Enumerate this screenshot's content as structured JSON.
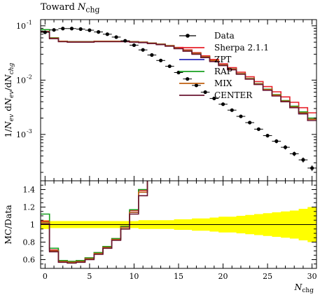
{
  "chart_data": {
    "type": "line",
    "title": "Toward N_chg",
    "title_parts": {
      "prefix": "Toward",
      "var": "N",
      "sub": "chg"
    },
    "xlabel": "N_chg",
    "ylabel_main": "1/N_ev dN_ev/dN_chg",
    "ylabel_ratio": "MC/Data",
    "xlim": [
      -0.5,
      30.5
    ],
    "ylim_main": [
      0.00014,
      0.13
    ],
    "yscale_main": "log",
    "ylim_ratio": [
      0.5,
      1.5
    ],
    "x_ticks": [
      0,
      5,
      10,
      15,
      20,
      25,
      30
    ],
    "x_tick_labels": [
      "0",
      "5",
      "10",
      "15",
      "20",
      "25",
      "30"
    ],
    "y_ticks_main_labels": [
      "10^-1",
      "10^-2",
      "10^-3"
    ],
    "y_ticks_ratio": [
      0.6,
      0.8,
      1.0,
      1.2,
      1.4
    ],
    "y_tick_labels_ratio": [
      "0.6",
      "0.8",
      "1",
      "1.2",
      "1.4"
    ],
    "legend_position": "top-right",
    "bins": [
      0,
      1,
      2,
      3,
      4,
      5,
      6,
      7,
      8,
      9,
      10,
      11,
      12,
      13,
      14,
      15,
      16,
      17,
      18,
      19,
      20,
      21,
      22,
      23,
      24,
      25,
      26,
      27,
      28,
      29,
      30
    ],
    "data": {
      "name": "Data",
      "values": [
        0.076,
        0.084,
        0.089,
        0.089,
        0.087,
        0.083,
        0.077,
        0.07,
        0.062,
        0.053,
        0.044,
        0.036,
        0.029,
        0.023,
        0.018,
        0.0138,
        0.0105,
        0.008,
        0.006,
        0.0046,
        0.0036,
        0.0028,
        0.00215,
        0.00165,
        0.00125,
        0.00095,
        0.00075,
        0.00058,
        0.00044,
        0.00034,
        0.00024
      ],
      "uncertainty_band_rel": [
        0.05,
        0.04,
        0.04,
        0.04,
        0.04,
        0.04,
        0.04,
        0.04,
        0.04,
        0.04,
        0.04,
        0.05,
        0.05,
        0.05,
        0.05,
        0.06,
        0.06,
        0.07,
        0.07,
        0.08,
        0.09,
        0.09,
        0.1,
        0.11,
        0.12,
        0.13,
        0.14,
        0.15,
        0.16,
        0.18,
        0.2
      ],
      "color": "#000000"
    },
    "series": [
      {
        "name": "Sherpa 2.1.1",
        "color": "#e8202a",
        "values": [
          0.079,
          0.06,
          0.052,
          0.051,
          0.051,
          0.051,
          0.052,
          0.052,
          0.052,
          0.052,
          0.051,
          0.05,
          0.048,
          0.046,
          0.043,
          0.04,
          0.036,
          0.032,
          0.028,
          0.024,
          0.02,
          0.017,
          0.014,
          0.0115,
          0.0094,
          0.0076,
          0.0061,
          0.0049,
          0.0039,
          0.0031,
          0.0025
        ]
      },
      {
        "name": "ZPT",
        "color": "#2a2ab8",
        "values": [
          0.078,
          0.059,
          0.052,
          0.051,
          0.051,
          0.051,
          0.052,
          0.052,
          0.052,
          0.052,
          0.051,
          0.05,
          0.048,
          0.046,
          0.043,
          0.039,
          0.035,
          0.031,
          0.027,
          0.023,
          0.019,
          0.016,
          0.013,
          0.0105,
          0.0084,
          0.0066,
          0.0052,
          0.0041,
          0.0031,
          0.0024,
          0.0019
        ]
      },
      {
        "name": "RAP",
        "color": "#18a020",
        "values": [
          0.085,
          0.06,
          0.052,
          0.051,
          0.051,
          0.051,
          0.052,
          0.052,
          0.052,
          0.052,
          0.051,
          0.05,
          0.048,
          0.046,
          0.043,
          0.039,
          0.035,
          0.031,
          0.027,
          0.023,
          0.019,
          0.016,
          0.0132,
          0.0107,
          0.0086,
          0.0068,
          0.0054,
          0.0042,
          0.0033,
          0.0026,
          0.002
        ]
      },
      {
        "name": "MIX",
        "color": "#c06010",
        "values": [
          0.078,
          0.059,
          0.052,
          0.051,
          0.051,
          0.051,
          0.052,
          0.052,
          0.052,
          0.052,
          0.051,
          0.05,
          0.048,
          0.046,
          0.043,
          0.039,
          0.035,
          0.031,
          0.027,
          0.023,
          0.019,
          0.016,
          0.0131,
          0.0106,
          0.0085,
          0.0067,
          0.0053,
          0.0041,
          0.0032,
          0.0025,
          0.0019
        ]
      },
      {
        "name": "CENTER",
        "color": "#6a1530",
        "values": [
          0.077,
          0.058,
          0.051,
          0.05,
          0.05,
          0.05,
          0.051,
          0.051,
          0.051,
          0.051,
          0.05,
          0.049,
          0.047,
          0.045,
          0.042,
          0.038,
          0.034,
          0.03,
          0.026,
          0.022,
          0.0185,
          0.0155,
          0.0128,
          0.0104,
          0.0083,
          0.0065,
          0.0051,
          0.004,
          0.0031,
          0.0024,
          0.0018
        ]
      }
    ],
    "ratio_series": [
      {
        "name": "Sherpa 2.1.1",
        "values": [
          1.04,
          0.71,
          0.59,
          0.58,
          0.59,
          0.62,
          0.68,
          0.75,
          0.84,
          0.98,
          1.16,
          1.39,
          1.66
        ]
      },
      {
        "name": "ZPT",
        "values": [
          1.03,
          0.7,
          0.58,
          0.57,
          0.58,
          0.61,
          0.67,
          0.74,
          0.83,
          0.97,
          1.14,
          1.37,
          1.62
        ]
      },
      {
        "name": "RAP",
        "values": [
          1.12,
          0.73,
          0.59,
          0.58,
          0.59,
          0.62,
          0.68,
          0.75,
          0.84,
          0.98,
          1.17,
          1.4,
          1.66
        ]
      },
      {
        "name": "MIX",
        "values": [
          1.03,
          0.7,
          0.58,
          0.57,
          0.58,
          0.61,
          0.67,
          0.74,
          0.83,
          0.97,
          1.14,
          1.37,
          1.62
        ]
      },
      {
        "name": "CENTER",
        "values": [
          1.01,
          0.69,
          0.57,
          0.56,
          0.57,
          0.6,
          0.66,
          0.73,
          0.82,
          0.95,
          1.12,
          1.33,
          1.58
        ]
      }
    ]
  }
}
